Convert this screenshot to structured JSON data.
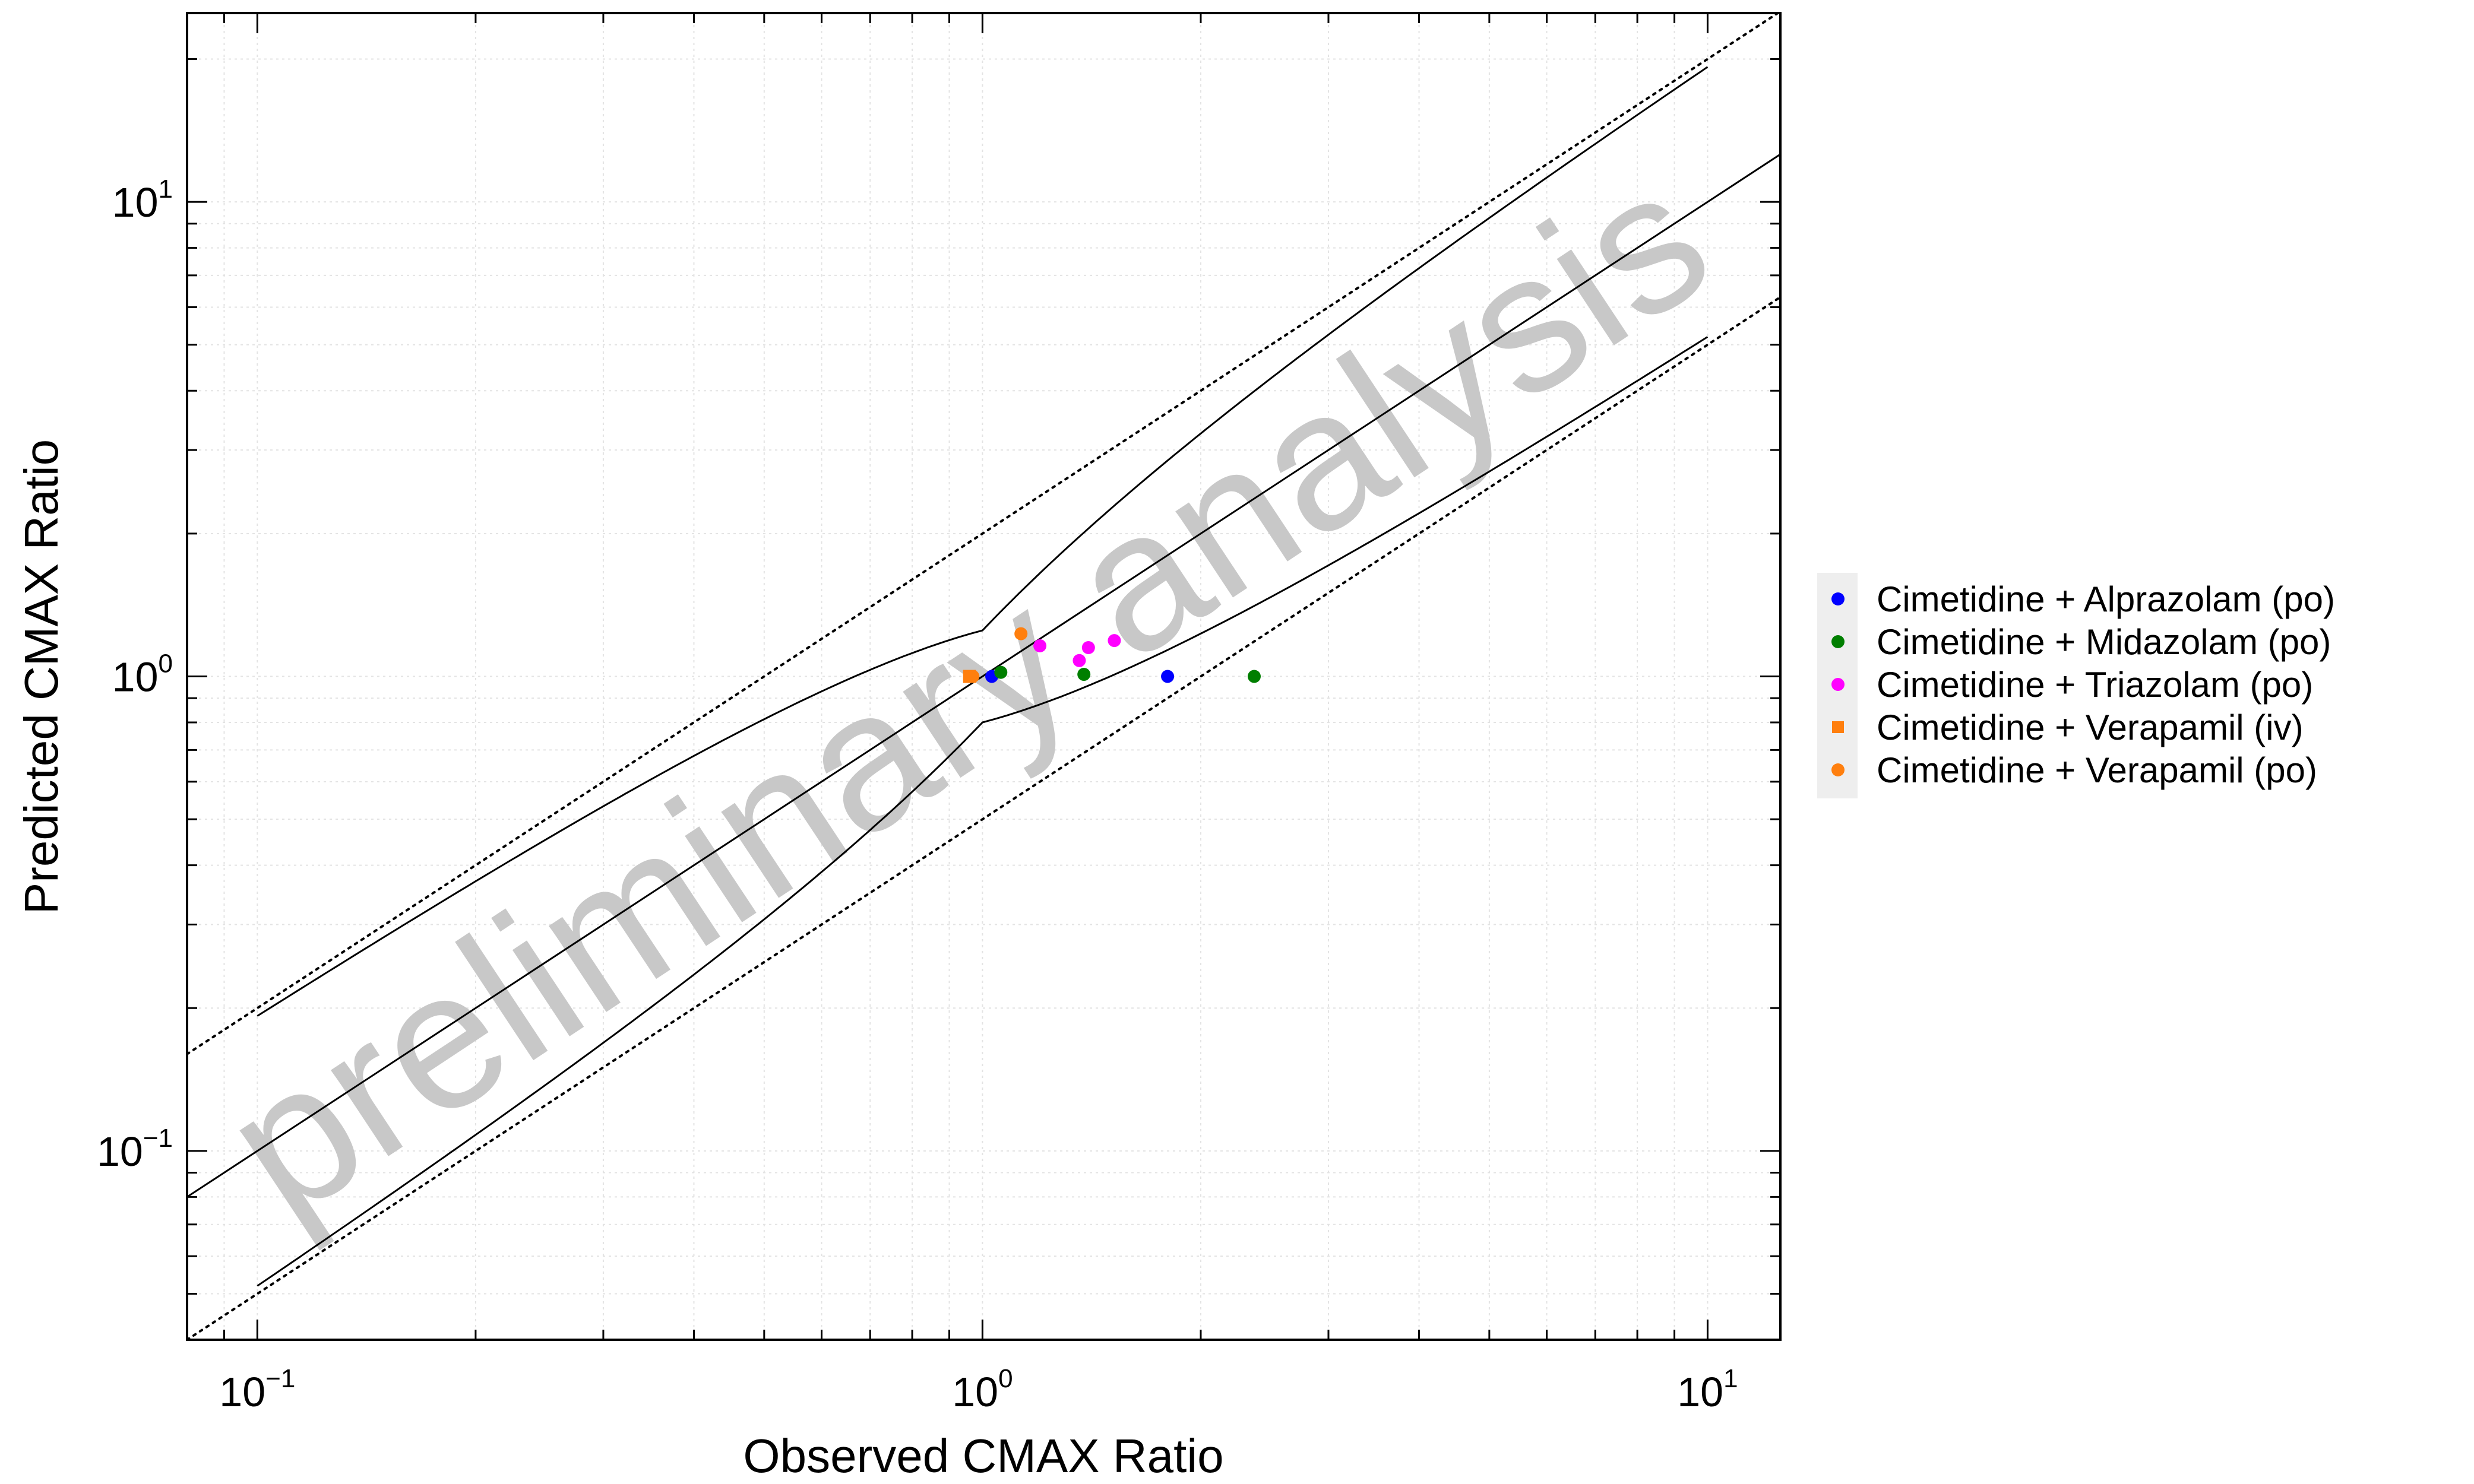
{
  "chart_data": {
    "type": "scatter",
    "xlabel": "Observed CMAX Ratio",
    "ylabel": "Predicted CMAX Ratio",
    "x_scale": "log",
    "y_scale": "log",
    "xlim": [
      0.08,
      12.6
    ],
    "ylim": [
      0.04,
      25.0
    ],
    "x_ticks": [
      {
        "value": 0.1,
        "base": "10",
        "exp": "−1"
      },
      {
        "value": 1,
        "base": "10",
        "exp": "0"
      },
      {
        "value": 10,
        "base": "10",
        "exp": "1"
      }
    ],
    "y_ticks": [
      {
        "value": 0.1,
        "base": "10",
        "exp": "−1"
      },
      {
        "value": 1,
        "base": "10",
        "exp": "0"
      },
      {
        "value": 10,
        "base": "10",
        "exp": "1"
      }
    ],
    "grid": true,
    "legend_position": "right",
    "watermark": "preliminary analysis",
    "reference_lines": [
      {
        "kind": "line of identity",
        "fold": 1,
        "style": "solid",
        "x_range": [
          0.08,
          12.6
        ]
      },
      {
        "kind": "fold limit",
        "fold": 2,
        "style": "dotted",
        "x_range": [
          0.08,
          12.6
        ]
      },
      {
        "kind": "guest limit",
        "delta": 1.25,
        "style": "solid",
        "x_range": [
          0.1,
          10
        ]
      }
    ],
    "series": [
      {
        "name": "Cimetidine + Alprazolam (po)",
        "color": "#0000ff",
        "marker": "circle",
        "x": [
          1.03,
          1.8
        ],
        "y": [
          1.0,
          1.0
        ]
      },
      {
        "name": "Cimetidine + Midazolam (po)",
        "color": "#007f00",
        "marker": "circle",
        "x": [
          1.06,
          1.38,
          2.37
        ],
        "y": [
          1.02,
          1.01,
          1.0
        ]
      },
      {
        "name": "Cimetidine + Triazolam (po)",
        "color": "#ff00ff",
        "marker": "circle",
        "x": [
          1.2,
          1.36,
          1.4,
          1.52
        ],
        "y": [
          1.16,
          1.08,
          1.15,
          1.19
        ]
      },
      {
        "name": "Cimetidine + Verapamil (iv)",
        "color": "#ff7f0e",
        "marker": "square",
        "x": [
          0.96
        ],
        "y": [
          1.0
        ]
      },
      {
        "name": "Cimetidine + Verapamil (po)",
        "color": "#ff7f0e",
        "marker": "circle",
        "x": [
          0.97,
          1.13
        ],
        "y": [
          1.0,
          1.23
        ]
      }
    ]
  }
}
